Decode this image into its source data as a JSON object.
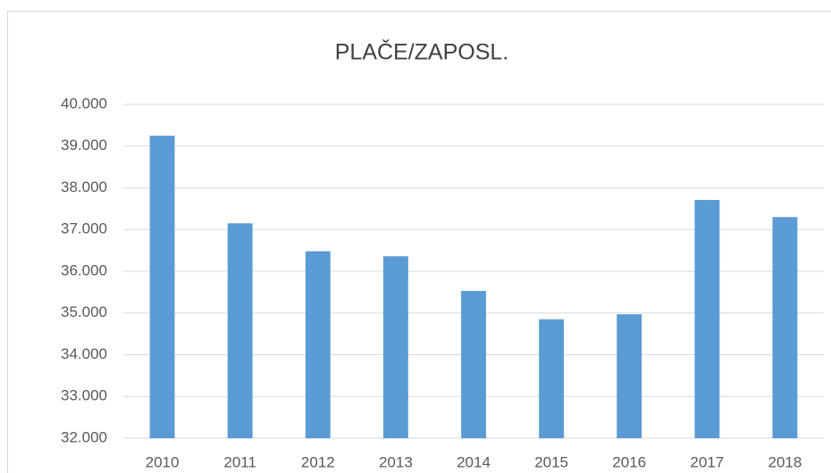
{
  "chart_data": {
    "type": "bar",
    "title": "PLAČE/ZAPOSL.",
    "categories": [
      "2010",
      "2011",
      "2012",
      "2013",
      "2014",
      "2015",
      "2016",
      "2017",
      "2018"
    ],
    "values": [
      39250,
      37150,
      36480,
      36360,
      35530,
      34850,
      34970,
      37710,
      37300
    ],
    "color": "#5b9bd5",
    "ylim": [
      32000,
      40000
    ],
    "yticks": [
      {
        "value": 32000,
        "label": "32.000"
      },
      {
        "value": 33000,
        "label": "33.000"
      },
      {
        "value": 34000,
        "label": "34.000"
      },
      {
        "value": 35000,
        "label": "35.000"
      },
      {
        "value": 36000,
        "label": "36.000"
      },
      {
        "value": 37000,
        "label": "37.000"
      },
      {
        "value": 38000,
        "label": "38.000"
      },
      {
        "value": 39000,
        "label": "39.000"
      },
      {
        "value": 40000,
        "label": "40.000"
      }
    ],
    "grid": true
  }
}
